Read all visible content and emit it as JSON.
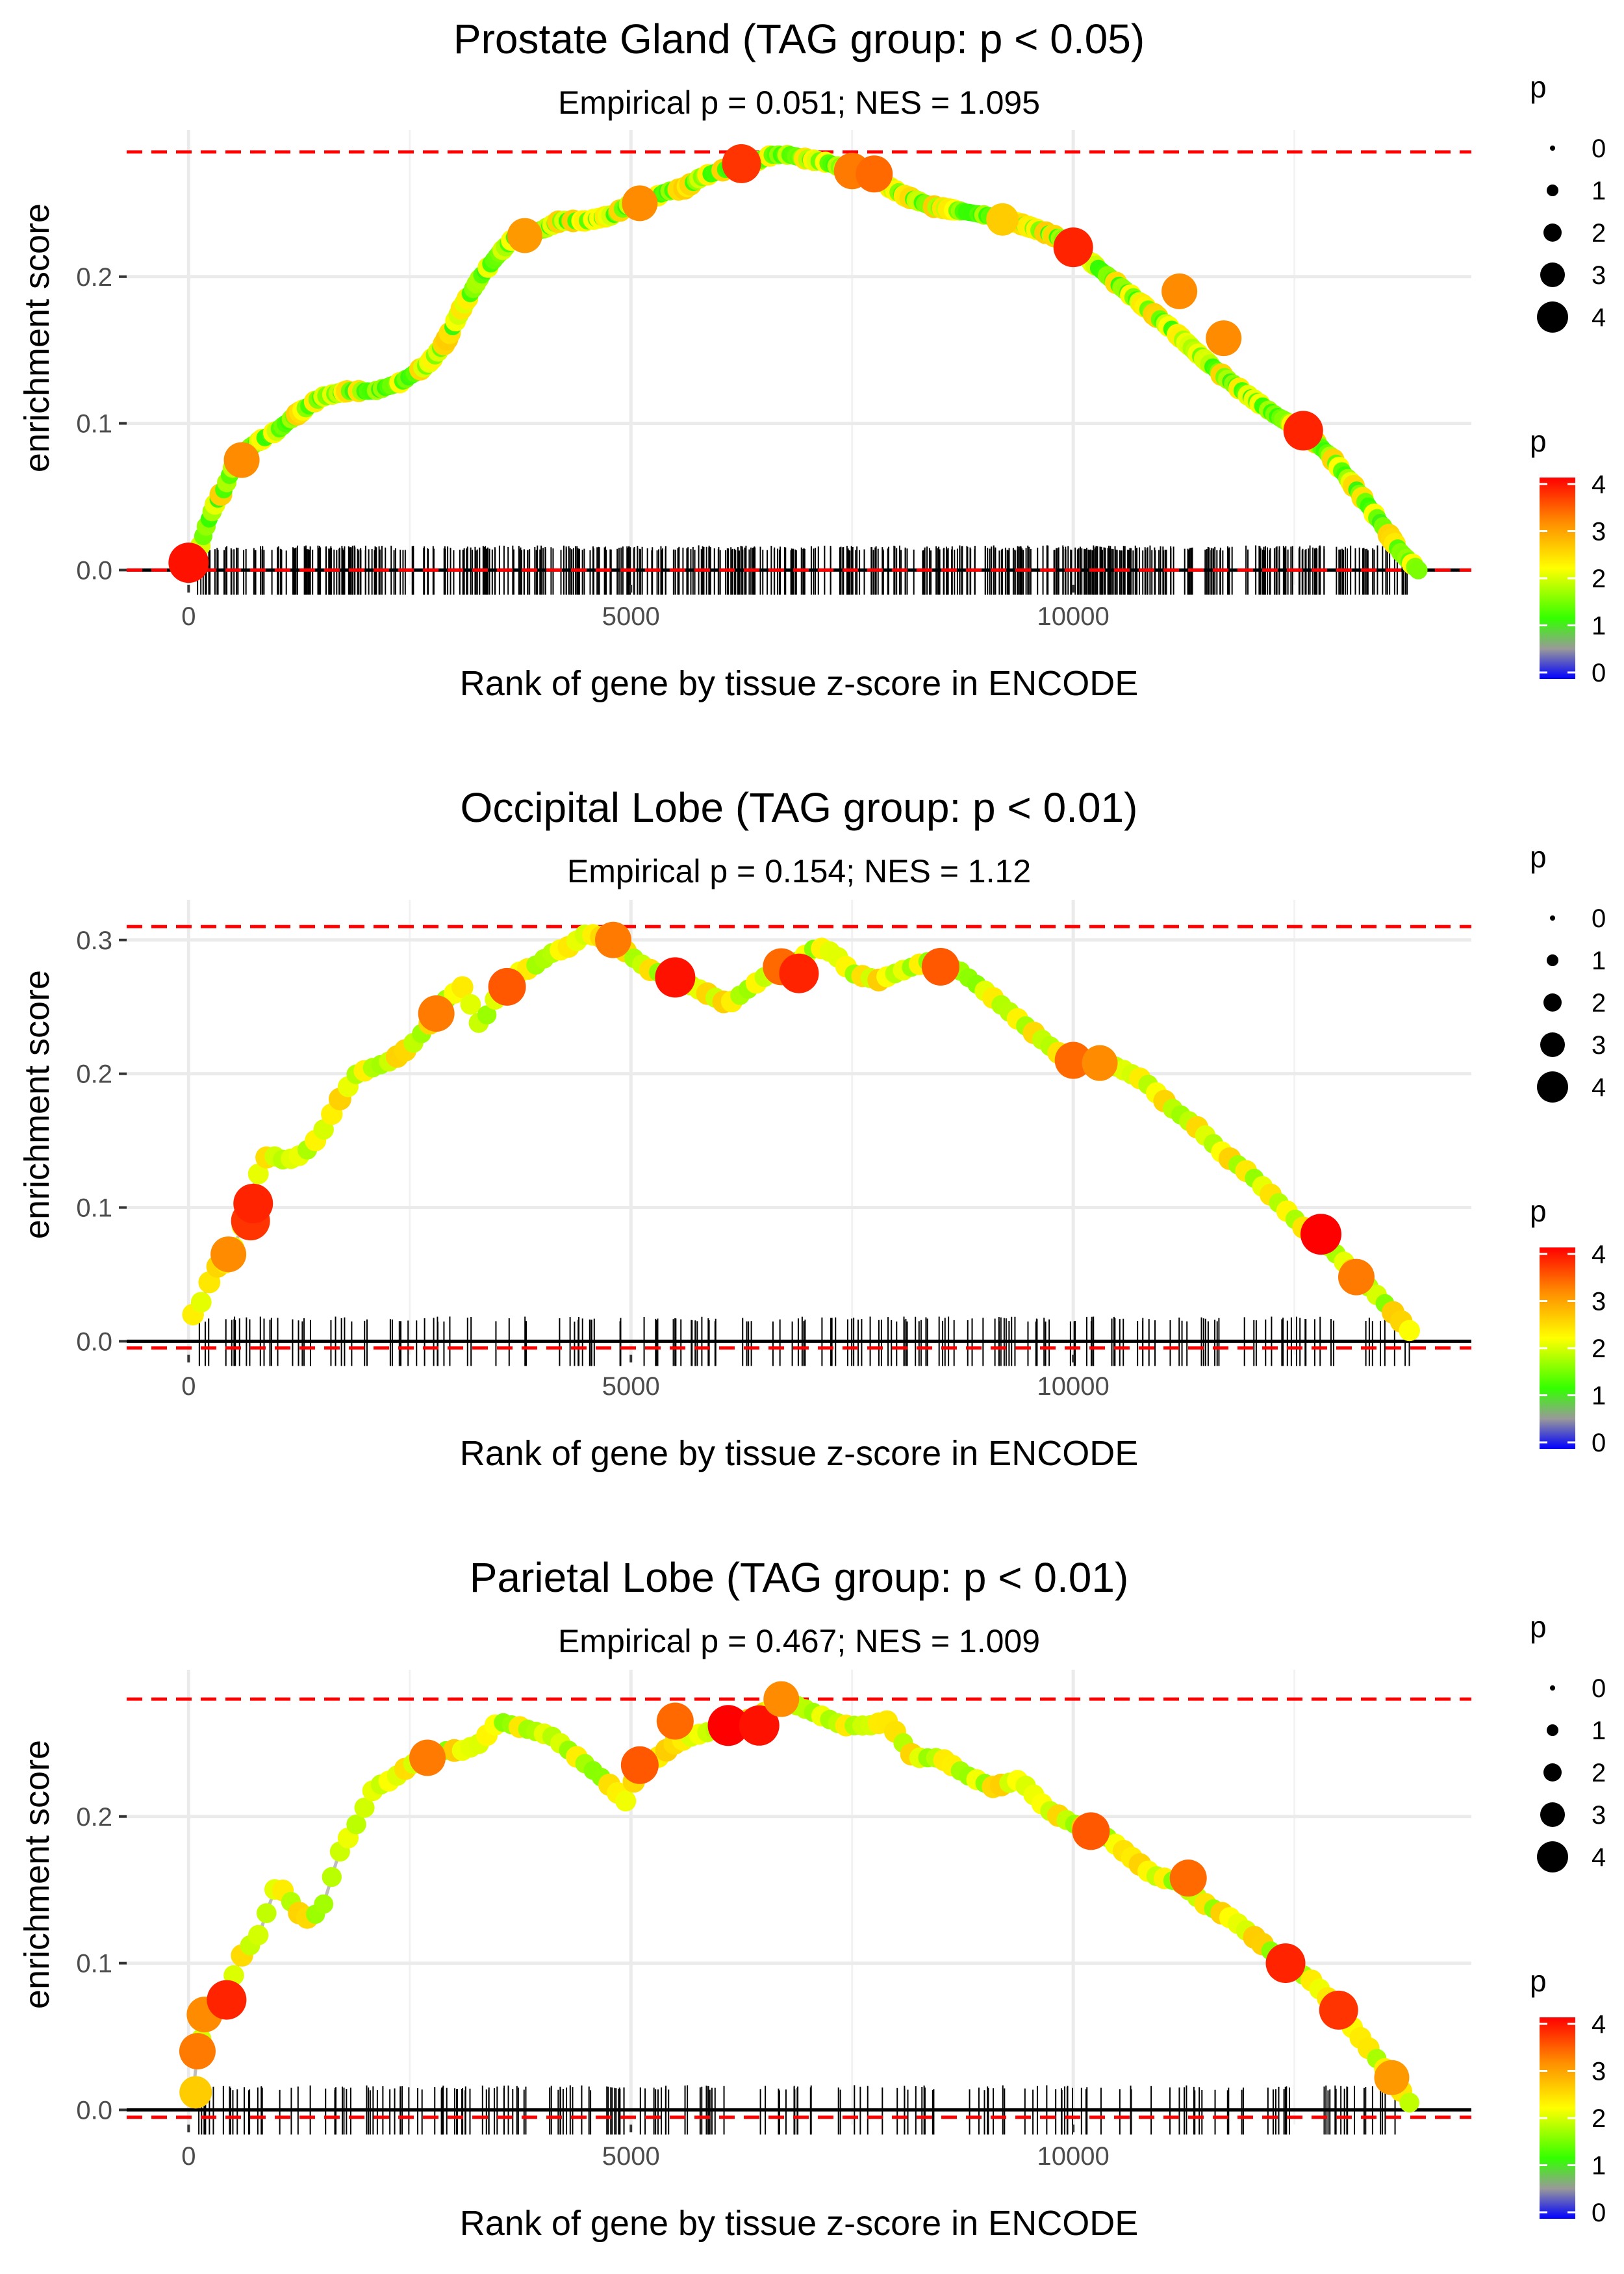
{
  "chart_data": [
    {
      "type": "line",
      "title": "Prostate Gland (TAG group: p < 0.05)",
      "subtitle": "Empirical p = 0.051; NES = 1.095",
      "xlabel": "Rank of gene by tissue z-score in ENCODE",
      "ylabel": "enrichment score",
      "xlim": [
        -700,
        14500
      ],
      "ylim": [
        -0.01,
        0.3
      ],
      "x_ticks": [
        0,
        5000,
        10000
      ],
      "x_tick_labels": [
        "0",
        "5000",
        "10000"
      ],
      "y_ticks": [
        0,
        0.1,
        0.2
      ],
      "y_tick_labels": [
        "0.0",
        "0.1",
        "0.2"
      ],
      "max_es_line": 0.285,
      "min_es_line": 0.0,
      "num_hits": 600,
      "curve": [
        [
          0,
          0.005
        ],
        [
          100,
          0.01
        ],
        [
          200,
          0.03
        ],
        [
          300,
          0.045
        ],
        [
          400,
          0.055
        ],
        [
          500,
          0.07
        ],
        [
          600,
          0.08
        ],
        [
          800,
          0.088
        ],
        [
          1000,
          0.095
        ],
        [
          1200,
          0.105
        ],
        [
          1500,
          0.118
        ],
        [
          1800,
          0.122
        ],
        [
          2100,
          0.122
        ],
        [
          2400,
          0.128
        ],
        [
          2700,
          0.14
        ],
        [
          2900,
          0.155
        ],
        [
          3100,
          0.18
        ],
        [
          3300,
          0.2
        ],
        [
          3500,
          0.215
        ],
        [
          3700,
          0.228
        ],
        [
          4000,
          0.232
        ],
        [
          4200,
          0.238
        ],
        [
          4500,
          0.238
        ],
        [
          4800,
          0.242
        ],
        [
          5000,
          0.25
        ],
        [
          5200,
          0.252
        ],
        [
          5400,
          0.258
        ],
        [
          5600,
          0.26
        ],
        [
          5800,
          0.268
        ],
        [
          6000,
          0.272
        ],
        [
          6200,
          0.275
        ],
        [
          6400,
          0.278
        ],
        [
          6600,
          0.283
        ],
        [
          6800,
          0.283
        ],
        [
          7000,
          0.28
        ],
        [
          7200,
          0.278
        ],
        [
          7500,
          0.272
        ],
        [
          7800,
          0.265
        ],
        [
          8100,
          0.255
        ],
        [
          8400,
          0.248
        ],
        [
          8700,
          0.245
        ],
        [
          9000,
          0.242
        ],
        [
          9300,
          0.238
        ],
        [
          9600,
          0.232
        ],
        [
          9900,
          0.225
        ],
        [
          10200,
          0.21
        ],
        [
          10500,
          0.195
        ],
        [
          10800,
          0.18
        ],
        [
          11100,
          0.165
        ],
        [
          11400,
          0.148
        ],
        [
          11700,
          0.132
        ],
        [
          12000,
          0.118
        ],
        [
          12300,
          0.105
        ],
        [
          12600,
          0.095
        ],
        [
          12900,
          0.078
        ],
        [
          13200,
          0.055
        ],
        [
          13500,
          0.03
        ],
        [
          13700,
          0.012
        ],
        [
          13900,
          0.0
        ]
      ],
      "highlight_points": [
        {
          "x": 0,
          "y": 0.005,
          "p": 4.2
        },
        {
          "x": 600,
          "y": 0.075,
          "p": 3.5
        },
        {
          "x": 3800,
          "y": 0.228,
          "p": 3.4
        },
        {
          "x": 5100,
          "y": 0.25,
          "p": 3.5
        },
        {
          "x": 6250,
          "y": 0.277,
          "p": 4.0
        },
        {
          "x": 7500,
          "y": 0.272,
          "p": 3.6
        },
        {
          "x": 7750,
          "y": 0.27,
          "p": 3.7
        },
        {
          "x": 9200,
          "y": 0.239,
          "p": 3.0
        },
        {
          "x": 10000,
          "y": 0.22,
          "p": 4.1
        },
        {
          "x": 11200,
          "y": 0.19,
          "p": 3.5
        },
        {
          "x": 11700,
          "y": 0.158,
          "p": 3.5
        },
        {
          "x": 12600,
          "y": 0.095,
          "p": 4.1
        }
      ],
      "size_legend": {
        "title": "p",
        "labels": [
          "0",
          "1",
          "2",
          "3",
          "4"
        ]
      },
      "color_legend": {
        "title": "p",
        "labels": [
          "4",
          "3",
          "2",
          "1",
          "0"
        ],
        "stops": [
          "#ff0000",
          "#ff8c00",
          "#ffff00",
          "#33ff00",
          "#999999",
          "#0000ff"
        ]
      }
    },
    {
      "type": "line",
      "title": "Occipital Lobe (TAG group: p < 0.01)",
      "subtitle": "Empirical p = 0.154; NES = 1.12",
      "xlabel": "Rank of gene by tissue z-score in ENCODE",
      "ylabel": "enrichment score",
      "xlim": [
        -700,
        14500
      ],
      "ylim": [
        -0.01,
        0.33
      ],
      "x_ticks": [
        0,
        5000,
        10000
      ],
      "x_tick_labels": [
        "0",
        "5000",
        "10000"
      ],
      "y_ticks": [
        0,
        0.1,
        0.2,
        0.3
      ],
      "y_tick_labels": [
        "0.0",
        "0.1",
        "0.2",
        "0.3"
      ],
      "max_es_line": 0.31,
      "min_es_line": -0.005,
      "num_hits": 190,
      "curve": [
        [
          50,
          0.02
        ],
        [
          150,
          0.03
        ],
        [
          300,
          0.055
        ],
        [
          450,
          0.06
        ],
        [
          600,
          0.085
        ],
        [
          750,
          0.12
        ],
        [
          900,
          0.14
        ],
        [
          1100,
          0.135
        ],
        [
          1300,
          0.14
        ],
        [
          1500,
          0.155
        ],
        [
          1700,
          0.18
        ],
        [
          1900,
          0.2
        ],
        [
          2100,
          0.205
        ],
        [
          2300,
          0.21
        ],
        [
          2500,
          0.22
        ],
        [
          2700,
          0.235
        ],
        [
          2900,
          0.255
        ],
        [
          3100,
          0.265
        ],
        [
          3300,
          0.235
        ],
        [
          3500,
          0.26
        ],
        [
          3700,
          0.275
        ],
        [
          3900,
          0.28
        ],
        [
          4100,
          0.29
        ],
        [
          4300,
          0.295
        ],
        [
          4500,
          0.305
        ],
        [
          4800,
          0.3
        ],
        [
          5000,
          0.288
        ],
        [
          5200,
          0.278
        ],
        [
          5500,
          0.272
        ],
        [
          5800,
          0.262
        ],
        [
          6100,
          0.252
        ],
        [
          6300,
          0.262
        ],
        [
          6500,
          0.272
        ],
        [
          6700,
          0.278
        ],
        [
          6900,
          0.285
        ],
        [
          7100,
          0.295
        ],
        [
          7300,
          0.29
        ],
        [
          7500,
          0.275
        ],
        [
          7800,
          0.27
        ],
        [
          8100,
          0.278
        ],
        [
          8400,
          0.285
        ],
        [
          8700,
          0.278
        ],
        [
          9000,
          0.262
        ],
        [
          9300,
          0.245
        ],
        [
          9600,
          0.228
        ],
        [
          9900,
          0.212
        ],
        [
          10200,
          0.21
        ],
        [
          10500,
          0.205
        ],
        [
          10800,
          0.195
        ],
        [
          11100,
          0.175
        ],
        [
          11400,
          0.16
        ],
        [
          11700,
          0.14
        ],
        [
          12000,
          0.125
        ],
        [
          12300,
          0.105
        ],
        [
          12600,
          0.085
        ],
        [
          12900,
          0.07
        ],
        [
          13200,
          0.05
        ],
        [
          13500,
          0.03
        ],
        [
          13800,
          0.008
        ]
      ],
      "highlight_points": [
        {
          "x": 700,
          "y": 0.09,
          "p": 4.0
        },
        {
          "x": 730,
          "y": 0.103,
          "p": 4.1
        },
        {
          "x": 450,
          "y": 0.065,
          "p": 3.5
        },
        {
          "x": 2800,
          "y": 0.245,
          "p": 3.6
        },
        {
          "x": 3600,
          "y": 0.265,
          "p": 3.8
        },
        {
          "x": 4800,
          "y": 0.3,
          "p": 3.6
        },
        {
          "x": 5500,
          "y": 0.272,
          "p": 4.2
        },
        {
          "x": 6700,
          "y": 0.28,
          "p": 3.7
        },
        {
          "x": 6900,
          "y": 0.275,
          "p": 4.1
        },
        {
          "x": 8500,
          "y": 0.28,
          "p": 3.8
        },
        {
          "x": 10000,
          "y": 0.21,
          "p": 3.7
        },
        {
          "x": 10300,
          "y": 0.208,
          "p": 3.5
        },
        {
          "x": 12800,
          "y": 0.08,
          "p": 4.3
        },
        {
          "x": 13200,
          "y": 0.048,
          "p": 3.6
        }
      ],
      "size_legend": {
        "title": "p",
        "labels": [
          "0",
          "1",
          "2",
          "3",
          "4"
        ]
      },
      "color_legend": {
        "title": "p",
        "labels": [
          "4",
          "3",
          "2",
          "1",
          "0"
        ],
        "stops": [
          "#ff0000",
          "#ff8c00",
          "#ffff00",
          "#33ff00",
          "#999999",
          "#0000ff"
        ]
      }
    },
    {
      "type": "line",
      "title": "Parietal Lobe (TAG group: p < 0.01)",
      "subtitle": "Empirical p = 0.467; NES = 1.009",
      "xlabel": "Rank of gene by tissue z-score in ENCODE",
      "ylabel": "enrichment score",
      "xlim": [
        -700,
        14500
      ],
      "ylim": [
        -0.01,
        0.3
      ],
      "x_ticks": [
        0,
        5000,
        10000
      ],
      "x_tick_labels": [
        "0",
        "5000",
        "10000"
      ],
      "y_ticks": [
        0,
        0.1,
        0.2
      ],
      "y_tick_labels": [
        "0.0",
        "0.1",
        "0.2"
      ],
      "max_es_line": 0.28,
      "min_es_line": -0.005,
      "num_hits": 210,
      "curve": [
        [
          50,
          0.01
        ],
        [
          100,
          0.04
        ],
        [
          200,
          0.06
        ],
        [
          400,
          0.075
        ],
        [
          600,
          0.105
        ],
        [
          800,
          0.12
        ],
        [
          1000,
          0.155
        ],
        [
          1300,
          0.13
        ],
        [
          1500,
          0.135
        ],
        [
          1700,
          0.175
        ],
        [
          1900,
          0.195
        ],
        [
          2100,
          0.22
        ],
        [
          2300,
          0.225
        ],
        [
          2500,
          0.235
        ],
        [
          2700,
          0.24
        ],
        [
          2900,
          0.245
        ],
        [
          3100,
          0.245
        ],
        [
          3300,
          0.25
        ],
        [
          3500,
          0.265
        ],
        [
          3800,
          0.26
        ],
        [
          4100,
          0.255
        ],
        [
          4400,
          0.24
        ],
        [
          4700,
          0.225
        ],
        [
          4950,
          0.21
        ],
        [
          5100,
          0.235
        ],
        [
          5300,
          0.24
        ],
        [
          5500,
          0.25
        ],
        [
          5700,
          0.255
        ],
        [
          5900,
          0.258
        ],
        [
          6100,
          0.262
        ],
        [
          6300,
          0.265
        ],
        [
          6500,
          0.27
        ],
        [
          6700,
          0.28
        ],
        [
          6900,
          0.275
        ],
        [
          7100,
          0.27
        ],
        [
          7400,
          0.262
        ],
        [
          7700,
          0.262
        ],
        [
          7900,
          0.265
        ],
        [
          8200,
          0.24
        ],
        [
          8500,
          0.24
        ],
        [
          8800,
          0.228
        ],
        [
          9100,
          0.22
        ],
        [
          9400,
          0.225
        ],
        [
          9700,
          0.205
        ],
        [
          10000,
          0.195
        ],
        [
          10300,
          0.19
        ],
        [
          10600,
          0.175
        ],
        [
          10900,
          0.16
        ],
        [
          11200,
          0.155
        ],
        [
          11500,
          0.14
        ],
        [
          11800,
          0.13
        ],
        [
          12100,
          0.115
        ],
        [
          12400,
          0.1
        ],
        [
          12700,
          0.088
        ],
        [
          13000,
          0.068
        ],
        [
          13300,
          0.045
        ],
        [
          13600,
          0.022
        ],
        [
          13800,
          0.005
        ]
      ],
      "highlight_points": [
        {
          "x": 80,
          "y": 0.012,
          "p": 3.0
        },
        {
          "x": 100,
          "y": 0.04,
          "p": 3.6
        },
        {
          "x": 180,
          "y": 0.065,
          "p": 3.5
        },
        {
          "x": 430,
          "y": 0.075,
          "p": 4.1
        },
        {
          "x": 2700,
          "y": 0.24,
          "p": 3.6
        },
        {
          "x": 5100,
          "y": 0.235,
          "p": 3.8
        },
        {
          "x": 5500,
          "y": 0.265,
          "p": 3.7
        },
        {
          "x": 6100,
          "y": 0.262,
          "p": 4.3
        },
        {
          "x": 6450,
          "y": 0.262,
          "p": 4.2
        },
        {
          "x": 6700,
          "y": 0.28,
          "p": 3.5
        },
        {
          "x": 10200,
          "y": 0.19,
          "p": 3.8
        },
        {
          "x": 11300,
          "y": 0.158,
          "p": 3.7
        },
        {
          "x": 12400,
          "y": 0.1,
          "p": 4.1
        },
        {
          "x": 13000,
          "y": 0.068,
          "p": 4.0
        },
        {
          "x": 13600,
          "y": 0.022,
          "p": 3.4
        }
      ],
      "size_legend": {
        "title": "p",
        "labels": [
          "0",
          "1",
          "2",
          "3",
          "4"
        ]
      },
      "color_legend": {
        "title": "p",
        "labels": [
          "4",
          "3",
          "2",
          "1",
          "0"
        ],
        "stops": [
          "#ff0000",
          "#ff8c00",
          "#ffff00",
          "#33ff00",
          "#999999",
          "#0000ff"
        ]
      }
    }
  ]
}
